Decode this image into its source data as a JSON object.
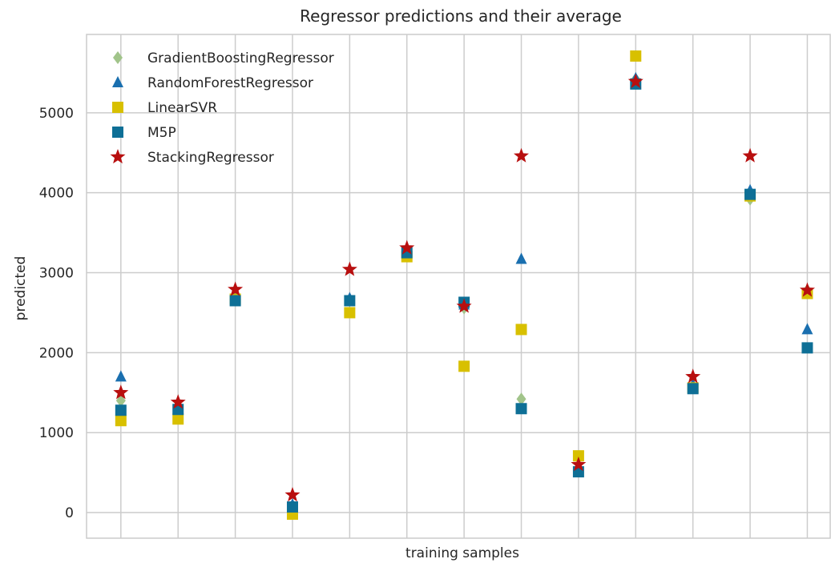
{
  "chart_data": {
    "type": "scatter",
    "title": "Regressor predictions and their average",
    "xlabel": "training samples",
    "ylabel": "predicted",
    "x": [
      0,
      1,
      2,
      3,
      4,
      5,
      6,
      7,
      8,
      9,
      10,
      11,
      12
    ],
    "xlim": [
      -0.6,
      12.4
    ],
    "ylim": [
      -320,
      5980
    ],
    "yticks": [
      0,
      1000,
      2000,
      3000,
      4000,
      5000
    ],
    "grid": true,
    "legend": "top-left",
    "series": [
      {
        "name": "GradientBoostingRegressor",
        "marker": "diamond",
        "color": "#a1c48a",
        "values": [
          1400,
          1300,
          2700,
          50,
          2650,
          3250,
          2560,
          1420,
          530,
          5420,
          1570,
          3920,
          2780
        ]
      },
      {
        "name": "RandomForestRegressor",
        "marker": "triangle",
        "color": "#1a6faf",
        "values": [
          1700,
          1350,
          2730,
          100,
          2680,
          3280,
          2600,
          3170,
          560,
          5430,
          1600,
          4030,
          2290
        ]
      },
      {
        "name": "LinearSVR",
        "marker": "square",
        "color": "#d8c000",
        "values": [
          1150,
          1170,
          2670,
          -20,
          2500,
          3200,
          1830,
          2290,
          710,
          5710,
          1560,
          3960,
          2740
        ]
      },
      {
        "name": "M5P",
        "marker": "square",
        "color": "#0e6f96",
        "values": [
          1280,
          1290,
          2650,
          70,
          2650,
          3250,
          2630,
          1300,
          510,
          5360,
          1550,
          3980,
          2060
        ]
      },
      {
        "name": "StackingRegressor",
        "marker": "star",
        "color": "#b80f0f",
        "values": [
          1500,
          1380,
          2790,
          220,
          3040,
          3310,
          2580,
          4460,
          600,
          5390,
          1700,
          4460,
          2780
        ]
      }
    ]
  }
}
